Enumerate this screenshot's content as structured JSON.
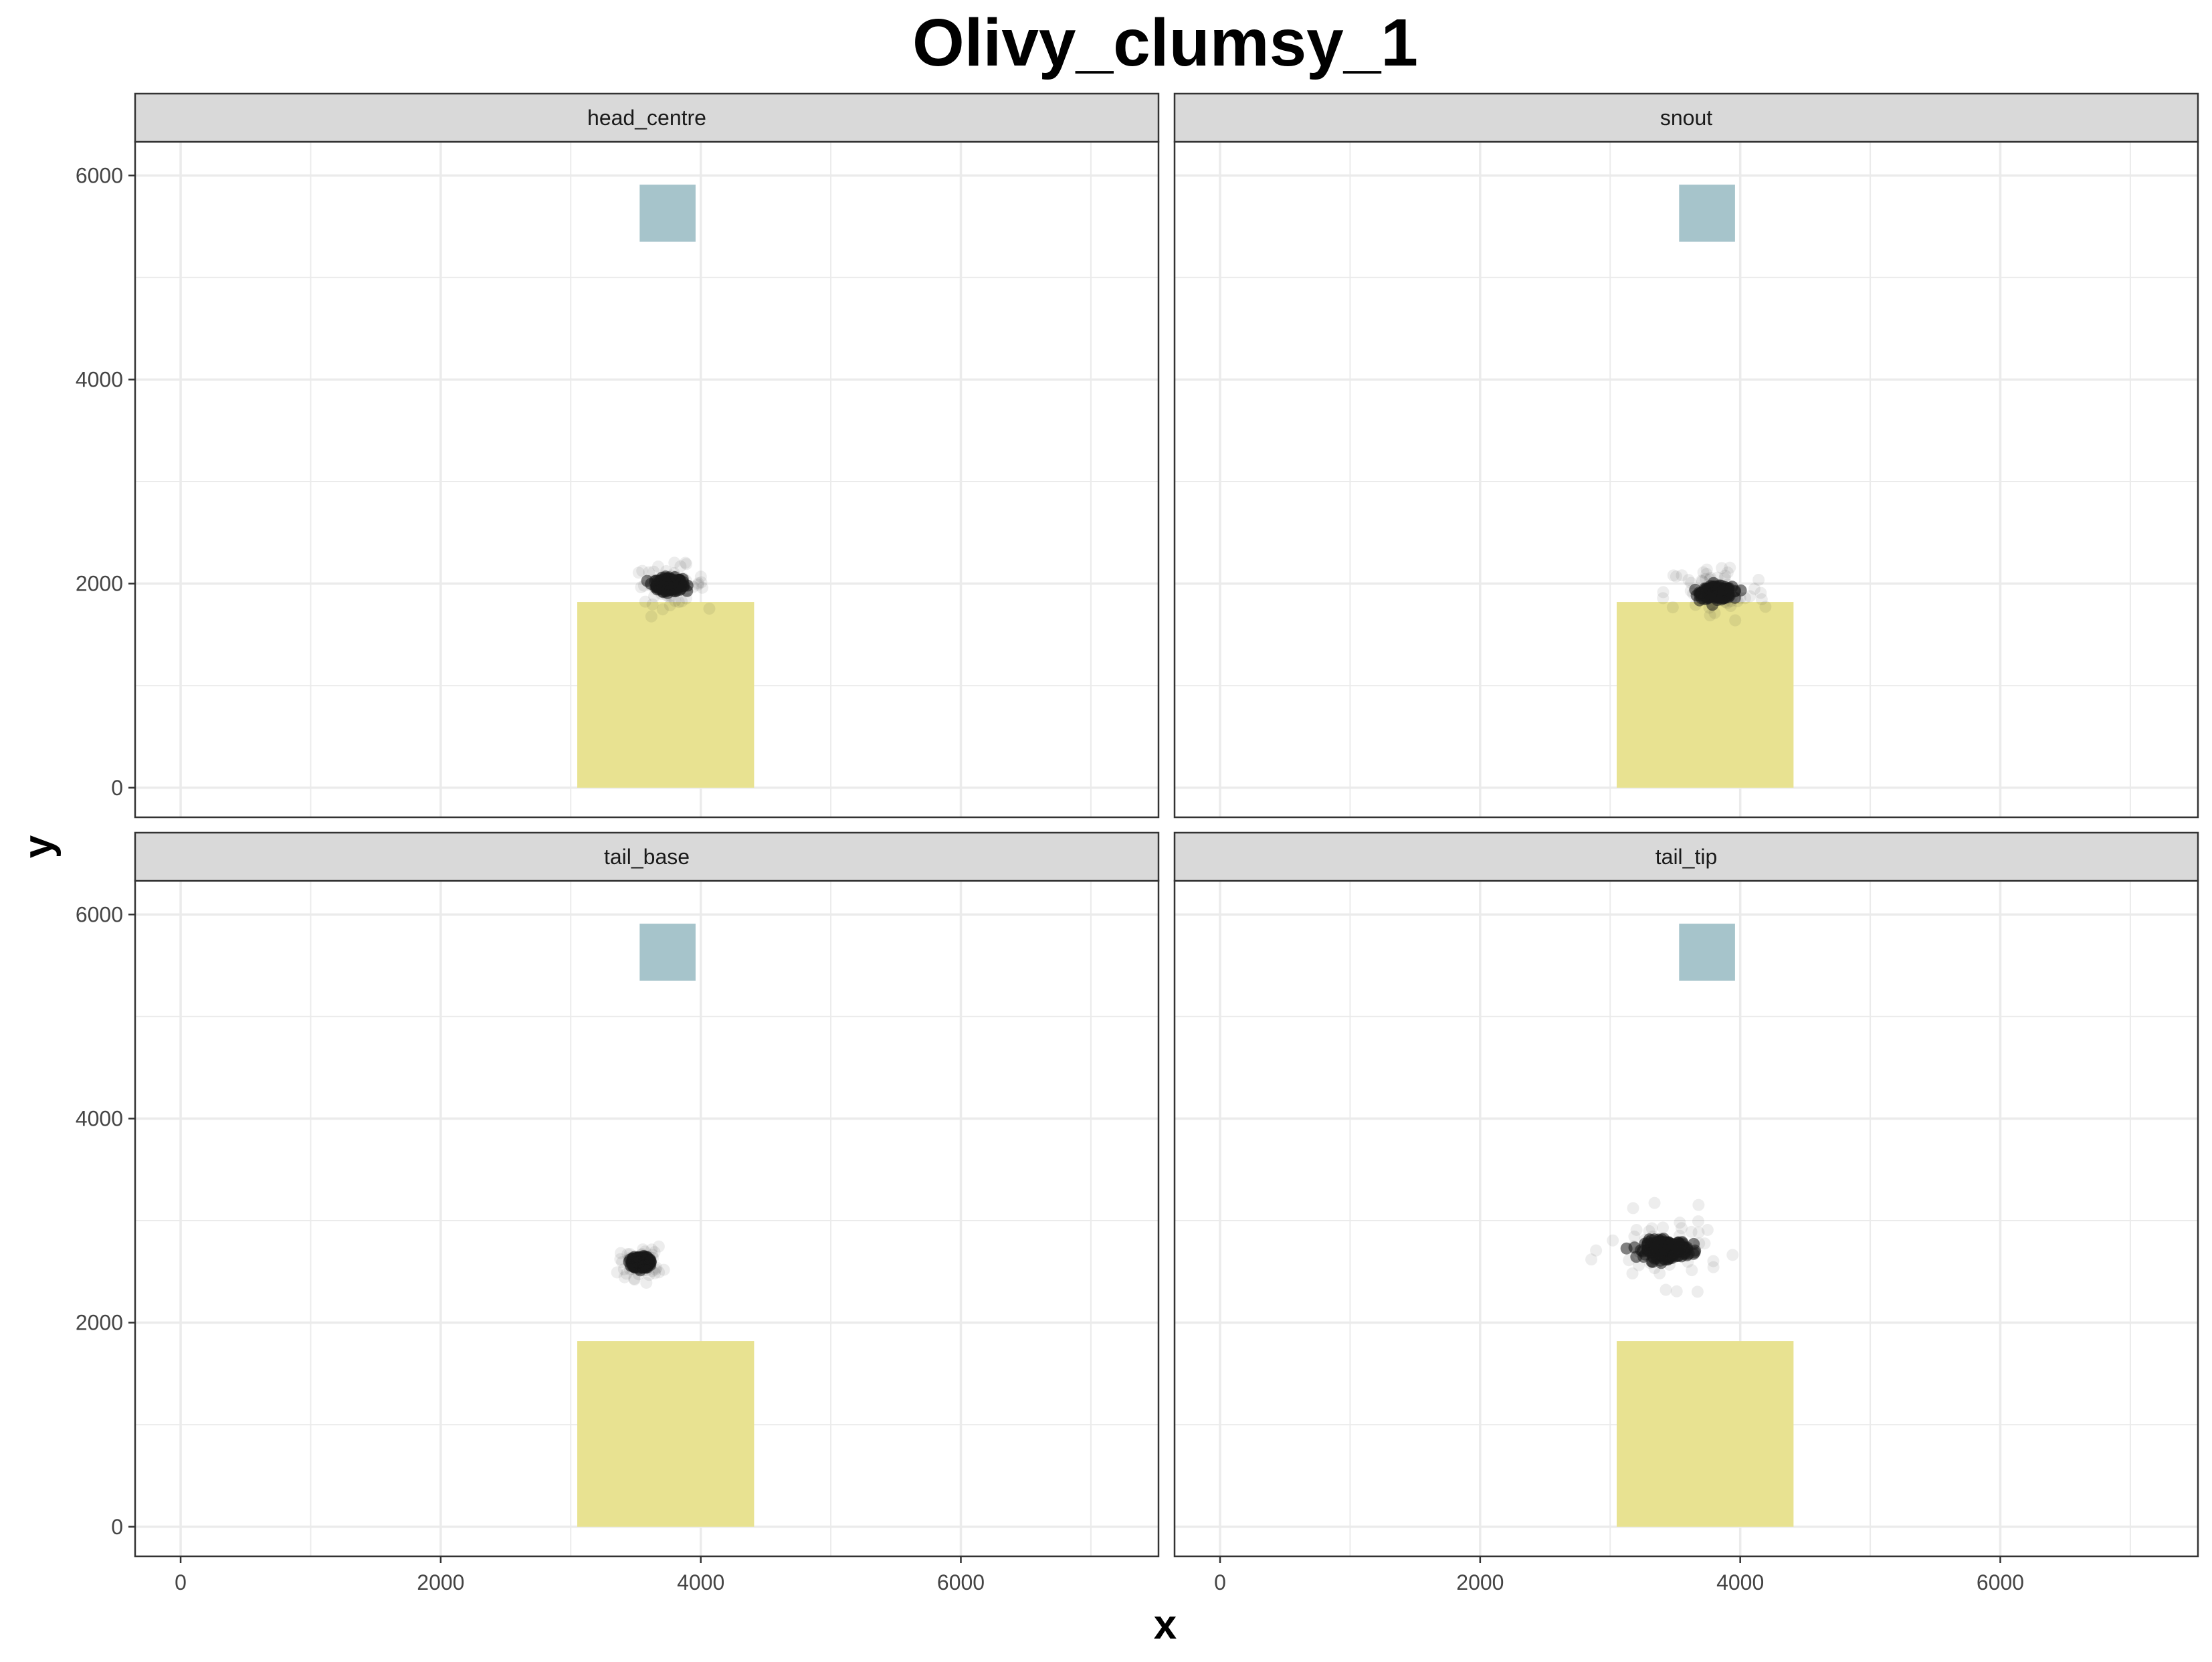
{
  "chart_data": {
    "type": "scatter",
    "title": "Olivy_clumsy_1",
    "xlabel": "x",
    "ylabel": "y",
    "xlim": [
      -350,
      7520
    ],
    "ylim": [
      -290,
      6330
    ],
    "x_ticks": [
      0,
      2000,
      4000,
      6000
    ],
    "y_ticks": [
      0,
      2000,
      4000,
      6000
    ],
    "grid": true,
    "legend": "none",
    "colors": {
      "point": "#1a1a1a",
      "zone_upper": "#a6c4cb",
      "zone_lower": "#e8e291",
      "strip_fill": "#d9d9d9",
      "grid": "#ebebeb",
      "panel_border": "#333333"
    },
    "zones": [
      {
        "xmin": 3530,
        "xmax": 3960,
        "ymin": 5350,
        "ymax": 5910,
        "color": "#a6c4cb"
      },
      {
        "xmin": 3050,
        "xmax": 4410,
        "ymin": 0,
        "ymax": 1820,
        "color": "#e8e291"
      }
    ],
    "facets": [
      {
        "label": "head_centre",
        "cluster": {
          "cx": 3760,
          "cy": 1990,
          "rx": 110,
          "ry": 70,
          "spread_x": 70,
          "spread_y": 50
        }
      },
      {
        "label": "snout",
        "cluster": {
          "cx": 3820,
          "cy": 1910,
          "rx": 130,
          "ry": 65,
          "spread_x": 120,
          "spread_y": 110
        }
      },
      {
        "label": "tail_base",
        "cluster": {
          "cx": 3540,
          "cy": 2590,
          "rx": 70,
          "ry": 60,
          "spread_x": 40,
          "spread_y": 40
        }
      },
      {
        "label": "tail_tip",
        "cluster": {
          "cx": 3430,
          "cy": 2720,
          "rx": 180,
          "ry": 95,
          "spread_x": 110,
          "spread_y": 110
        }
      }
    ]
  }
}
